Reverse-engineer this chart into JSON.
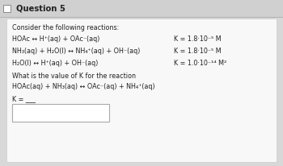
{
  "title": "Question 5",
  "bg_outer": "#d8d8d8",
  "bg_inner": "#efefef",
  "bg_card": "#f8f8f8",
  "bg_box": "#ffffff",
  "text_color": "#222222",
  "gray_text": "#555555",
  "line1_left": "HOAc ↔ H⁺(aq) + OAc⁻(aq)",
  "line1_right": "K = 1.8·10⁻⁵ M",
  "line2_left": "NH₃(aq) + H₂O(l) ↔ NH₄⁺(aq) + OH⁻(aq)",
  "line2_right": "K = 1.8·10⁻⁵ M",
  "line3_left": "H₂O(l) ↔ H⁺(aq) + OH⁻(aq)",
  "line3_right": "K = 1.0·10⁻¹⁴ M²",
  "question_text": "What is the value of K for the reaction",
  "reaction_line": "HOAc(aq) + NH₃(aq) ↔ OAc⁻(aq) + NH₄⁺(aq)",
  "k_label": "K = ___",
  "consider_text": "Consider the following reactions:"
}
